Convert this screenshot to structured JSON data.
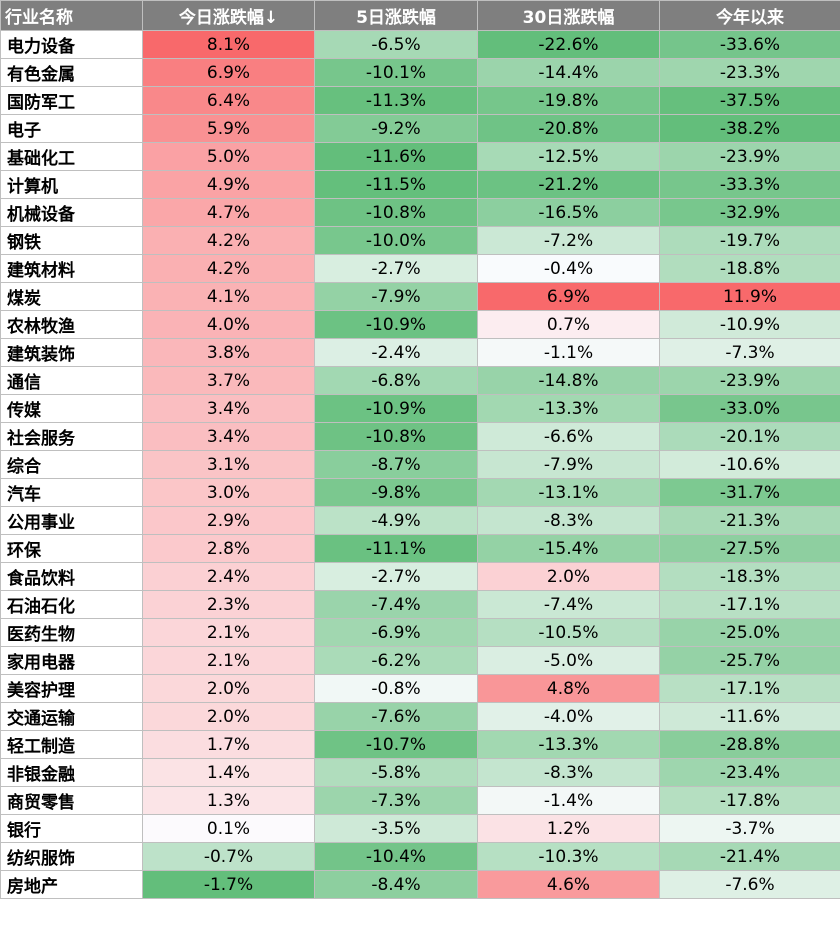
{
  "chart_data": {
    "type": "table",
    "columns": [
      "行业名称",
      "今日涨跌幅↓",
      "5日涨跌幅",
      "30日涨跌幅",
      "今年以来"
    ],
    "rows": [
      {
        "industry": "电力设备",
        "today": "8.1%",
        "d5": "-6.5%",
        "d30": "-22.6%",
        "ytd": "-33.6%"
      },
      {
        "industry": "有色金属",
        "today": "6.9%",
        "d5": "-10.1%",
        "d30": "-14.4%",
        "ytd": "-23.3%"
      },
      {
        "industry": "国防军工",
        "today": "6.4%",
        "d5": "-11.3%",
        "d30": "-19.8%",
        "ytd": "-37.5%"
      },
      {
        "industry": "电子",
        "today": "5.9%",
        "d5": "-9.2%",
        "d30": "-20.8%",
        "ytd": "-38.2%"
      },
      {
        "industry": "基础化工",
        "today": "5.0%",
        "d5": "-11.6%",
        "d30": "-12.5%",
        "ytd": "-23.9%"
      },
      {
        "industry": "计算机",
        "today": "4.9%",
        "d5": "-11.5%",
        "d30": "-21.2%",
        "ytd": "-33.3%"
      },
      {
        "industry": "机械设备",
        "today": "4.7%",
        "d5": "-10.8%",
        "d30": "-16.5%",
        "ytd": "-32.9%"
      },
      {
        "industry": "钢铁",
        "today": "4.2%",
        "d5": "-10.0%",
        "d30": "-7.2%",
        "ytd": "-19.7%"
      },
      {
        "industry": "建筑材料",
        "today": "4.2%",
        "d5": "-2.7%",
        "d30": "-0.4%",
        "ytd": "-18.8%"
      },
      {
        "industry": "煤炭",
        "today": "4.1%",
        "d5": "-7.9%",
        "d30": "6.9%",
        "ytd": "11.9%"
      },
      {
        "industry": "农林牧渔",
        "today": "4.0%",
        "d5": "-10.9%",
        "d30": "0.7%",
        "ytd": "-10.9%"
      },
      {
        "industry": "建筑装饰",
        "today": "3.8%",
        "d5": "-2.4%",
        "d30": "-1.1%",
        "ytd": "-7.3%"
      },
      {
        "industry": "通信",
        "today": "3.7%",
        "d5": "-6.8%",
        "d30": "-14.8%",
        "ytd": "-23.9%"
      },
      {
        "industry": "传媒",
        "today": "3.4%",
        "d5": "-10.9%",
        "d30": "-13.3%",
        "ytd": "-33.0%"
      },
      {
        "industry": "社会服务",
        "today": "3.4%",
        "d5": "-10.8%",
        "d30": "-6.6%",
        "ytd": "-20.1%"
      },
      {
        "industry": "综合",
        "today": "3.1%",
        "d5": "-8.7%",
        "d30": "-7.9%",
        "ytd": "-10.6%"
      },
      {
        "industry": "汽车",
        "today": "3.0%",
        "d5": "-9.8%",
        "d30": "-13.1%",
        "ytd": "-31.7%"
      },
      {
        "industry": "公用事业",
        "today": "2.9%",
        "d5": "-4.9%",
        "d30": "-8.3%",
        "ytd": "-21.3%"
      },
      {
        "industry": "环保",
        "today": "2.8%",
        "d5": "-11.1%",
        "d30": "-15.4%",
        "ytd": "-27.5%"
      },
      {
        "industry": "食品饮料",
        "today": "2.4%",
        "d5": "-2.7%",
        "d30": "2.0%",
        "ytd": "-18.3%"
      },
      {
        "industry": "石油石化",
        "today": "2.3%",
        "d5": "-7.4%",
        "d30": "-7.4%",
        "ytd": "-17.1%"
      },
      {
        "industry": "医药生物",
        "today": "2.1%",
        "d5": "-6.9%",
        "d30": "-10.5%",
        "ytd": "-25.0%"
      },
      {
        "industry": "家用电器",
        "today": "2.1%",
        "d5": "-6.2%",
        "d30": "-5.0%",
        "ytd": "-25.7%"
      },
      {
        "industry": "美容护理",
        "today": "2.0%",
        "d5": "-0.8%",
        "d30": "4.8%",
        "ytd": "-17.1%"
      },
      {
        "industry": "交通运输",
        "today": "2.0%",
        "d5": "-7.6%",
        "d30": "-4.0%",
        "ytd": "-11.6%"
      },
      {
        "industry": "轻工制造",
        "today": "1.7%",
        "d5": "-10.7%",
        "d30": "-13.3%",
        "ytd": "-28.8%"
      },
      {
        "industry": "非银金融",
        "today": "1.4%",
        "d5": "-5.8%",
        "d30": "-8.3%",
        "ytd": "-23.4%"
      },
      {
        "industry": "商贸零售",
        "today": "1.3%",
        "d5": "-7.3%",
        "d30": "-1.4%",
        "ytd": "-17.8%"
      },
      {
        "industry": "银行",
        "today": "0.1%",
        "d5": "-3.5%",
        "d30": "1.2%",
        "ytd": "-3.7%"
      },
      {
        "industry": "纺织服饰",
        "today": "-0.7%",
        "d5": "-10.4%",
        "d30": "-10.3%",
        "ytd": "-21.4%"
      },
      {
        "industry": "房地产",
        "today": "-1.7%",
        "d5": "-8.4%",
        "d30": "4.6%",
        "ytd": "-7.6%"
      }
    ],
    "colors": {
      "header_bg": "#7f7f7f",
      "header_text": "#ffffff",
      "positive_max": "#f8696b",
      "negative_max": "#63be7b",
      "neutral": "#fcfcff",
      "border": "#bfbfbf"
    }
  }
}
